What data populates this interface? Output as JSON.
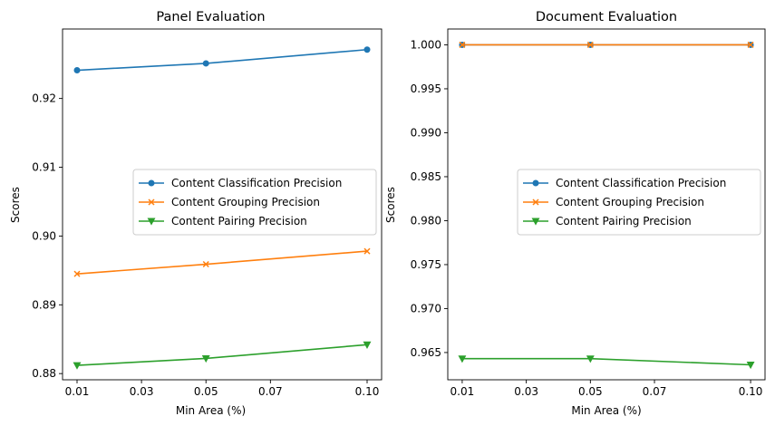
{
  "chart_data": [
    {
      "type": "line",
      "title": "Panel Evaluation",
      "xlabel": "Min Area (%)",
      "ylabel": "Scores",
      "x": [
        0.01,
        0.05,
        0.1
      ],
      "xticks": [
        "0.01",
        "0.03",
        "0.05",
        "0.07",
        "0.10"
      ],
      "xtick_values": [
        0.01,
        0.03,
        0.05,
        0.07,
        0.1
      ],
      "xlim": [
        0.0055,
        0.1045
      ],
      "yticks": [
        "0.88",
        "0.89",
        "0.90",
        "0.91",
        "0.92"
      ],
      "ytick_values": [
        0.88,
        0.89,
        0.9,
        0.91,
        0.92
      ],
      "ylim": [
        0.8791,
        0.9301
      ],
      "grid": false,
      "legend_position": "center-right",
      "series": [
        {
          "name": "Content Classification Precision",
          "values": [
            0.9241,
            0.9251,
            0.9271
          ],
          "color": "#1f77b4",
          "marker": "circle"
        },
        {
          "name": "Content Grouping Precision",
          "values": [
            0.8945,
            0.8959,
            0.8978
          ],
          "color": "#ff7f0e",
          "marker": "x"
        },
        {
          "name": "Content Pairing Precision",
          "values": [
            0.8812,
            0.8822,
            0.8842
          ],
          "color": "#2ca02c",
          "marker": "triangle-down"
        }
      ]
    },
    {
      "type": "line",
      "title": "Document Evaluation",
      "xlabel": "Min Area (%)",
      "ylabel": "Scores",
      "x": [
        0.01,
        0.05,
        0.1
      ],
      "xticks": [
        "0.01",
        "0.03",
        "0.05",
        "0.07",
        "0.10"
      ],
      "xtick_values": [
        0.01,
        0.03,
        0.05,
        0.07,
        0.1
      ],
      "xlim": [
        0.0055,
        0.1045
      ],
      "yticks": [
        "0.965",
        "0.970",
        "0.975",
        "0.980",
        "0.985",
        "0.990",
        "0.995",
        "1.000"
      ],
      "ytick_values": [
        0.965,
        0.97,
        0.975,
        0.98,
        0.985,
        0.99,
        0.995,
        1.0
      ],
      "ylim": [
        0.9619,
        1.0018
      ],
      "grid": false,
      "legend_position": "center-right",
      "series": [
        {
          "name": "Content Classification Precision",
          "values": [
            1.0,
            1.0,
            1.0
          ],
          "color": "#1f77b4",
          "marker": "circle"
        },
        {
          "name": "Content Grouping Precision",
          "values": [
            1.0,
            1.0,
            1.0
          ],
          "color": "#ff7f0e",
          "marker": "x"
        },
        {
          "name": "Content Pairing Precision",
          "values": [
            0.9643,
            0.9643,
            0.9636
          ],
          "color": "#2ca02c",
          "marker": "triangle-down"
        }
      ]
    }
  ]
}
